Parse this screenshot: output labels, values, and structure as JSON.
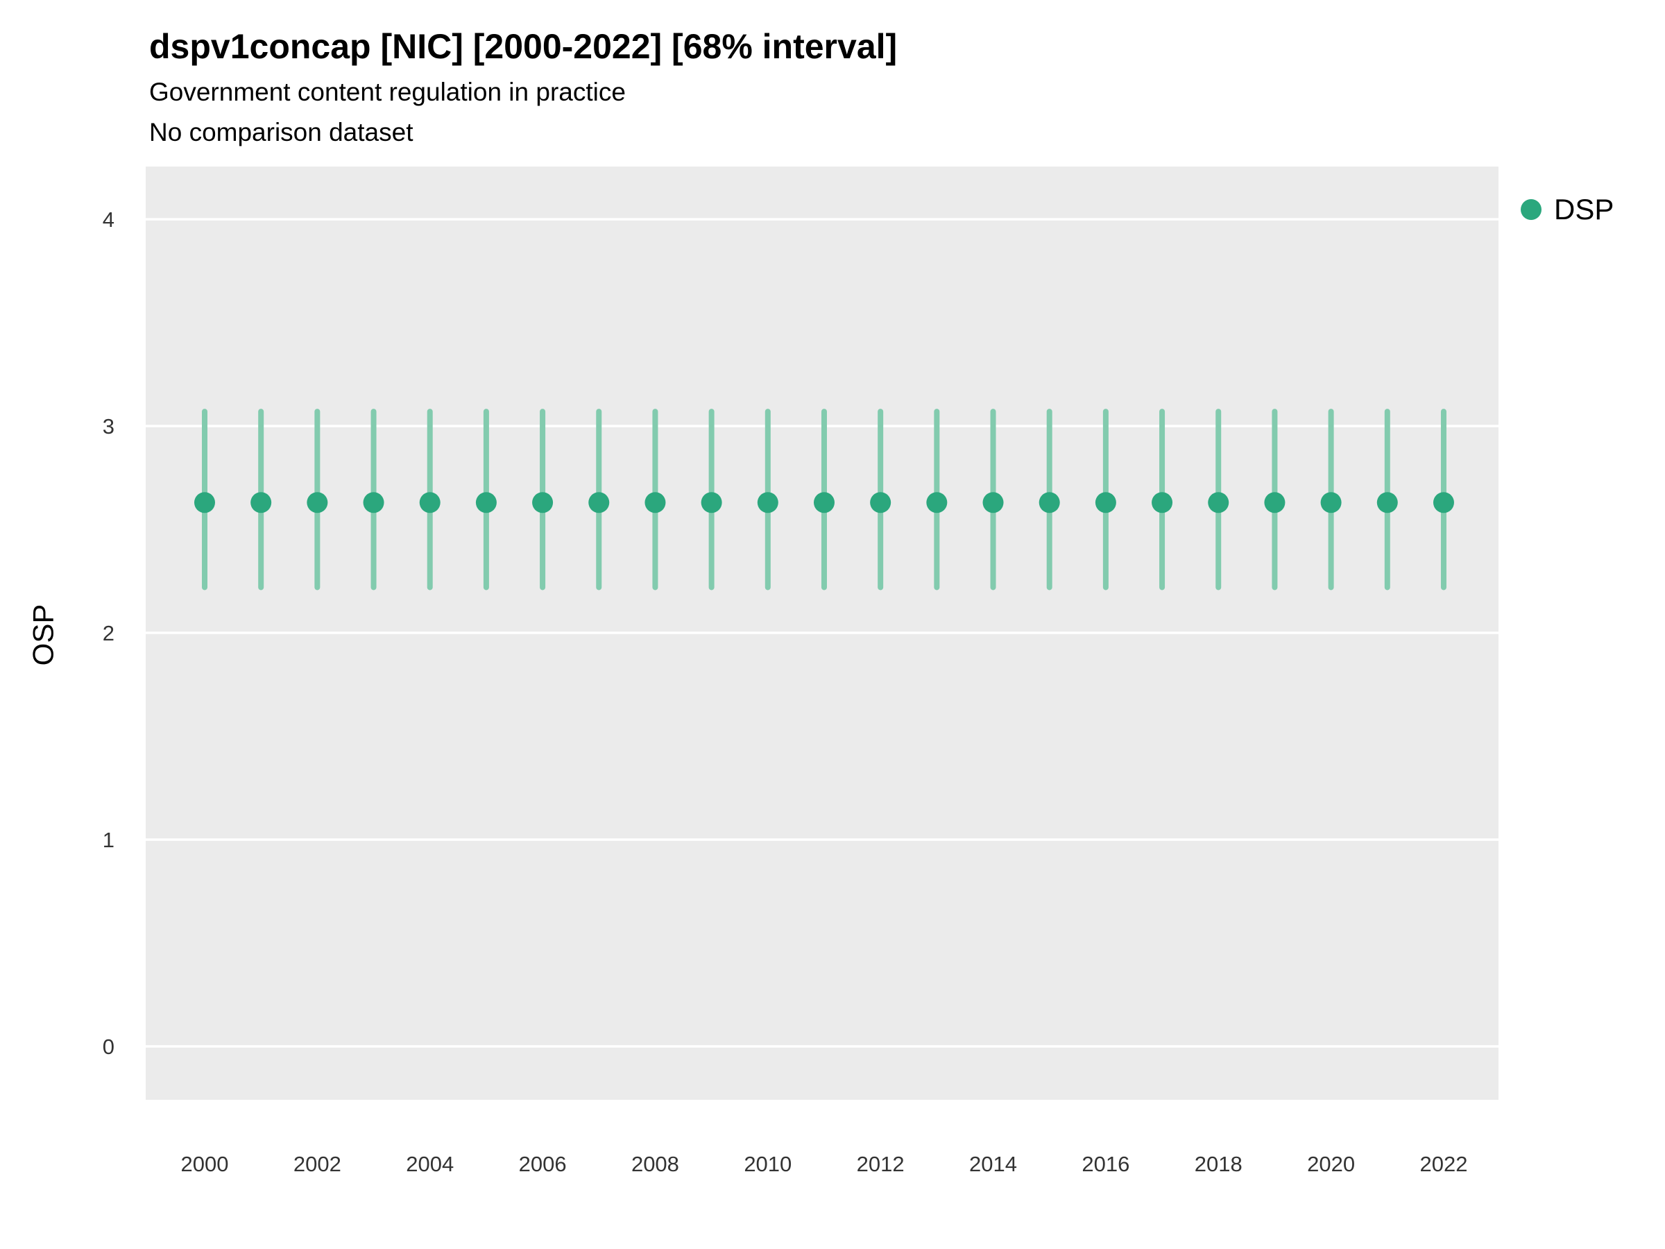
{
  "chart_data": {
    "type": "scatter",
    "title": "dspv1concap [NIC] [2000-2022] [68% interval]",
    "subtitle": "Government content regulation in practice",
    "note": "No comparison dataset",
    "xlabel": "",
    "ylabel": "OSP",
    "x": [
      2000,
      2001,
      2002,
      2003,
      2004,
      2005,
      2006,
      2007,
      2008,
      2009,
      2010,
      2011,
      2012,
      2013,
      2014,
      2015,
      2016,
      2017,
      2018,
      2019,
      2020,
      2021,
      2022
    ],
    "series": [
      {
        "name": "DSP",
        "values": [
          2.63,
          2.63,
          2.63,
          2.63,
          2.63,
          2.63,
          2.63,
          2.63,
          2.63,
          2.63,
          2.63,
          2.63,
          2.63,
          2.63,
          2.63,
          2.63,
          2.63,
          2.63,
          2.63,
          2.63,
          2.63,
          2.63,
          2.63
        ],
        "lower": [
          2.22,
          2.22,
          2.22,
          2.22,
          2.22,
          2.22,
          2.22,
          2.22,
          2.22,
          2.22,
          2.22,
          2.22,
          2.22,
          2.22,
          2.22,
          2.22,
          2.22,
          2.22,
          2.22,
          2.22,
          2.22,
          2.22,
          2.22
        ],
        "upper": [
          3.07,
          3.07,
          3.07,
          3.07,
          3.07,
          3.07,
          3.07,
          3.07,
          3.07,
          3.07,
          3.07,
          3.07,
          3.07,
          3.07,
          3.07,
          3.07,
          3.07,
          3.07,
          3.07,
          3.07,
          3.07,
          3.07,
          3.07
        ]
      }
    ],
    "interval_label": "68% interval",
    "ylim": [
      -0.26,
      4.26
    ],
    "yticks": [
      0,
      1,
      2,
      3,
      4
    ],
    "xticks": [
      2000,
      2002,
      2004,
      2006,
      2008,
      2010,
      2012,
      2014,
      2016,
      2018,
      2020,
      2022
    ],
    "grid": "major horizontal white lines on gray panel",
    "legend": {
      "position": "right",
      "entries": [
        {
          "label": "DSP",
          "color": "#2BA77D"
        }
      ]
    },
    "colors": {
      "point": "#2BA77D",
      "interval": "#82CBAE",
      "panel_bg": "#EBEBEB",
      "gridline": "#FFFFFF",
      "tick_text": "#333333"
    }
  }
}
